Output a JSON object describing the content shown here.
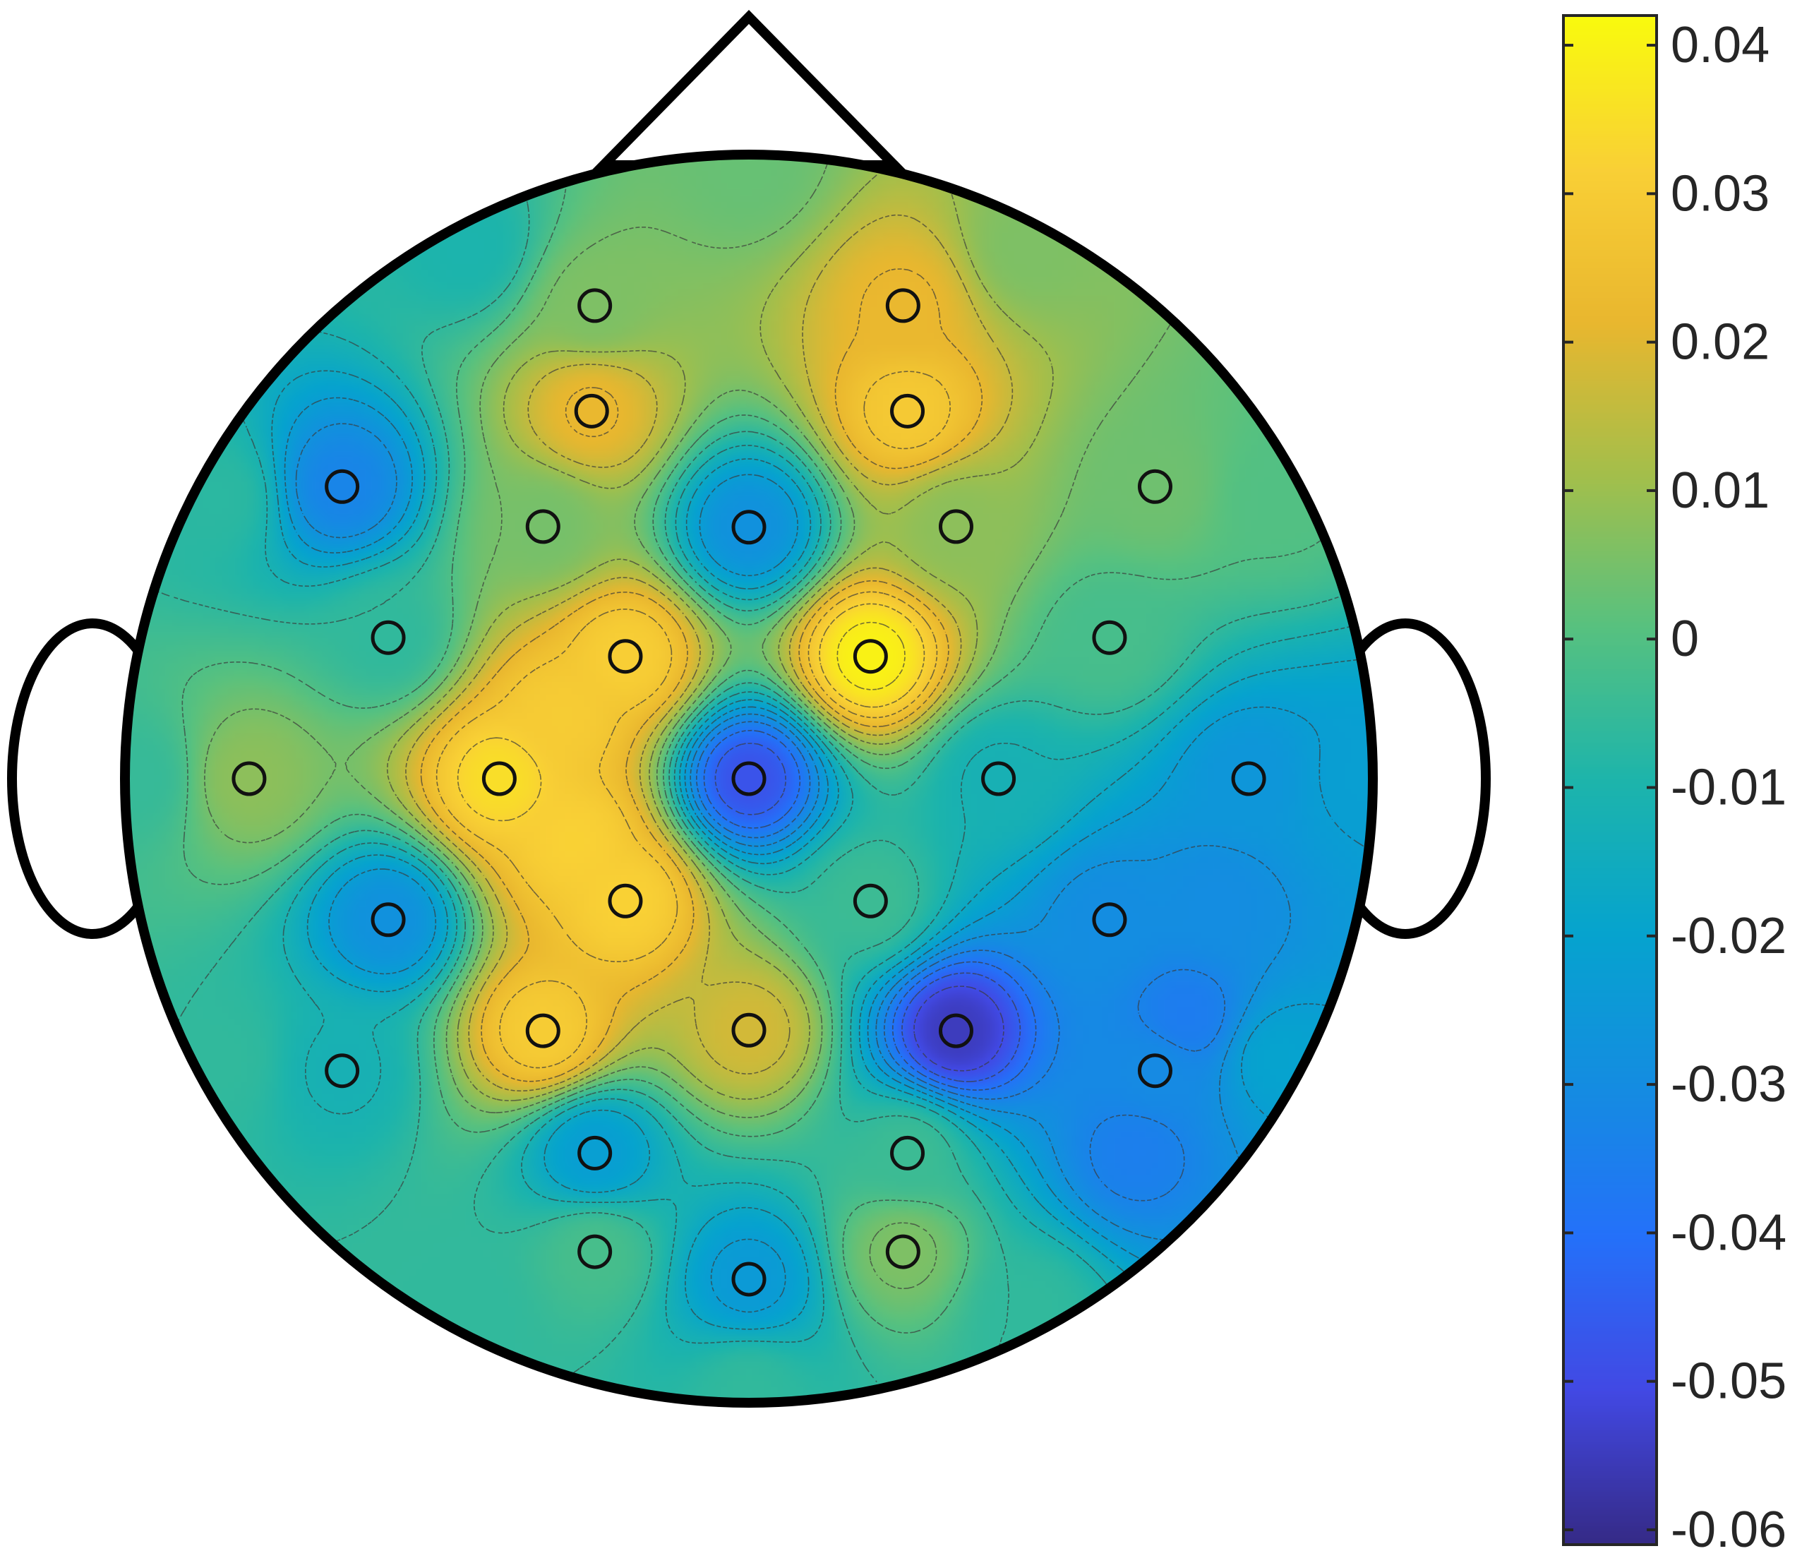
{
  "chart_data": {
    "type": "heatmap",
    "subtype": "eeg-topographic-map",
    "title": "",
    "colormap": "parula",
    "color_limits": [
      -0.061,
      0.042
    ],
    "colorbar": {
      "position": "right",
      "ticks": [
        0.04,
        0.03,
        0.02,
        0.01,
        0,
        -0.01,
        -0.02,
        -0.03,
        -0.04,
        -0.05,
        -0.06
      ],
      "tick_labels": [
        "0.04",
        "0.03",
        "0.02",
        "0.01",
        "0",
        "-0.01",
        "-0.02",
        "-0.03",
        "-0.04",
        "-0.05",
        "-0.06"
      ]
    },
    "contour_lines": "dashed",
    "electrodes": [
      {
        "x": -0.247,
        "y": 0.758,
        "value": 0.006
      },
      {
        "x": 0.247,
        "y": 0.758,
        "value": 0.022
      },
      {
        "x": -0.252,
        "y": 0.589,
        "value": 0.022
      },
      {
        "x": 0.254,
        "y": 0.589,
        "value": 0.029
      },
      {
        "x": -0.652,
        "y": 0.468,
        "value": -0.033
      },
      {
        "x": -0.33,
        "y": 0.404,
        "value": 0.005
      },
      {
        "x": 0.0,
        "y": 0.403,
        "value": -0.028
      },
      {
        "x": 0.332,
        "y": 0.404,
        "value": 0.008
      },
      {
        "x": 0.651,
        "y": 0.468,
        "value": 0.004
      },
      {
        "x": -0.578,
        "y": 0.226,
        "value": -0.006
      },
      {
        "x": -0.198,
        "y": 0.196,
        "value": 0.031
      },
      {
        "x": 0.195,
        "y": 0.196,
        "value": 0.04
      },
      {
        "x": 0.578,
        "y": 0.226,
        "value": -0.002
      },
      {
        "x": -0.801,
        "y": 0.0,
        "value": 0.008
      },
      {
        "x": -0.4,
        "y": 0.0,
        "value": 0.035
      },
      {
        "x": 0.0,
        "y": 0.0,
        "value": -0.048
      },
      {
        "x": 0.4,
        "y": 0.0,
        "value": -0.012
      },
      {
        "x": 0.801,
        "y": 0.0,
        "value": -0.026
      },
      {
        "x": -0.578,
        "y": -0.226,
        "value": -0.028
      },
      {
        "x": -0.198,
        "y": -0.196,
        "value": 0.032
      },
      {
        "x": 0.195,
        "y": -0.196,
        "value": -0.004
      },
      {
        "x": 0.578,
        "y": -0.226,
        "value": -0.03
      },
      {
        "x": -0.652,
        "y": -0.468,
        "value": -0.012
      },
      {
        "x": -0.33,
        "y": -0.404,
        "value": 0.03
      },
      {
        "x": 0.0,
        "y": -0.403,
        "value": 0.018
      },
      {
        "x": 0.332,
        "y": -0.404,
        "value": -0.055
      },
      {
        "x": 0.651,
        "y": -0.468,
        "value": -0.031
      },
      {
        "x": -0.247,
        "y": -0.6,
        "value": -0.022
      },
      {
        "x": 0.254,
        "y": -0.6,
        "value": -0.004
      },
      {
        "x": -0.247,
        "y": -0.758,
        "value": -0.002
      },
      {
        "x": 0.0,
        "y": -0.802,
        "value": -0.024
      },
      {
        "x": 0.247,
        "y": -0.758,
        "value": 0.006
      }
    ],
    "boundary_points": [
      {
        "x": 0.0,
        "y": 0.98,
        "value": 0.003
      },
      {
        "x": 0.45,
        "y": 0.85,
        "value": 0.006
      },
      {
        "x": 0.85,
        "y": 0.45,
        "value": 0.0
      },
      {
        "x": 0.98,
        "y": 0.0,
        "value": -0.022
      },
      {
        "x": 0.85,
        "y": -0.45,
        "value": -0.02
      },
      {
        "x": 0.45,
        "y": -0.85,
        "value": -0.006
      },
      {
        "x": 0.0,
        "y": -0.98,
        "value": -0.006
      },
      {
        "x": -0.45,
        "y": -0.85,
        "value": -0.006
      },
      {
        "x": -0.85,
        "y": -0.45,
        "value": -0.006
      },
      {
        "x": -0.98,
        "y": 0.0,
        "value": -0.005
      },
      {
        "x": -0.85,
        "y": 0.45,
        "value": -0.007
      },
      {
        "x": -0.45,
        "y": 0.85,
        "value": -0.01
      },
      {
        "x": 0.62,
        "y": -0.6,
        "value": -0.035
      },
      {
        "x": 0.75,
        "y": -0.2,
        "value": -0.03
      },
      {
        "x": 0.7,
        "y": -0.38,
        "value": -0.036
      },
      {
        "x": -0.3,
        "y": 0.1,
        "value": 0.03
      },
      {
        "x": -0.28,
        "y": -0.1,
        "value": 0.032
      }
    ]
  }
}
